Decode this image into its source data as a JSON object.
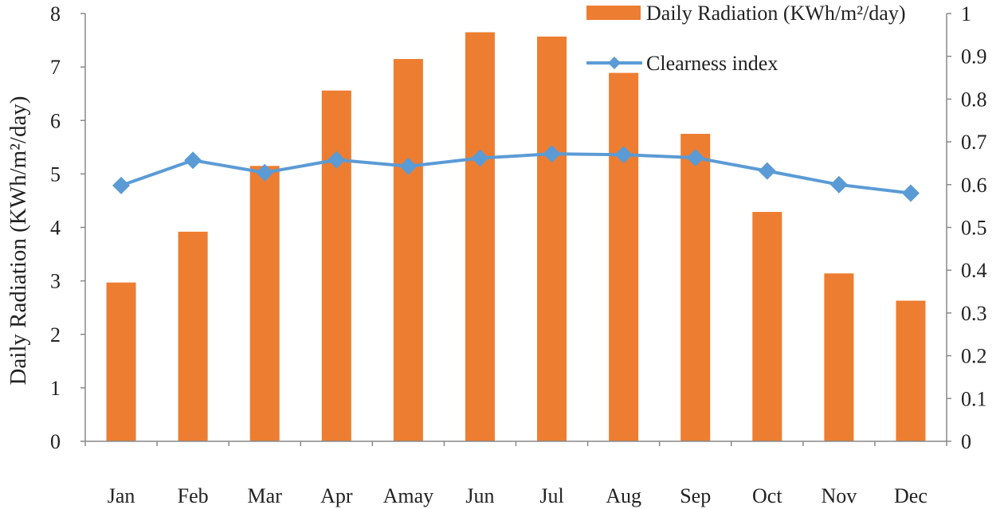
{
  "chart_data": {
    "type": "bar",
    "title": "",
    "categories": [
      "Jan",
      "Feb",
      "Mar",
      "Apr",
      "Amay",
      "Jun",
      "Jul",
      "Aug",
      "Sep",
      "Oct",
      "Nov",
      "Dec"
    ],
    "series": [
      {
        "name": "Daily Radiation (KWh/m²/day)",
        "type": "bar",
        "axis": "left",
        "color": "#ED7D31",
        "values": [
          2.97,
          3.92,
          5.15,
          6.56,
          7.15,
          7.65,
          7.57,
          6.89,
          5.75,
          4.29,
          3.14,
          2.63
        ]
      },
      {
        "name": "Clearness index",
        "type": "line",
        "marker": "diamond",
        "axis": "right",
        "color": "#5B9BD5",
        "values": [
          0.598,
          0.657,
          0.628,
          0.658,
          0.643,
          0.662,
          0.672,
          0.67,
          0.663,
          0.632,
          0.6,
          0.58
        ]
      }
    ],
    "y_left": {
      "label": "Daily Radiation (KWh/m²/day)",
      "range": [
        0,
        8
      ],
      "ticks": [
        "0",
        "1",
        "2",
        "3",
        "4",
        "5",
        "6",
        "7",
        "8"
      ]
    },
    "y_right": {
      "label": "",
      "range": [
        0,
        1
      ],
      "ticks": [
        "0",
        "0.1",
        "0.2",
        "0.3",
        "0.4",
        "0.5",
        "0.6",
        "0.7",
        "0.8",
        "0.9",
        "1"
      ]
    },
    "grid": false,
    "legend": "top-right"
  }
}
